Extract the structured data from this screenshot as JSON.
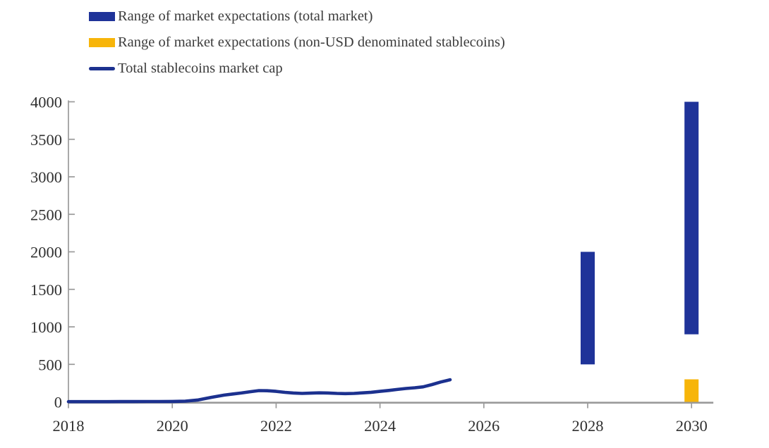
{
  "legend": {
    "items": [
      {
        "label": "Range of market expectations (total market)",
        "swatch": "rect",
        "color": "#1F3399"
      },
      {
        "label": "Range of market expectations (non-USD denominated stablecoins)",
        "swatch": "rect",
        "color": "#F7B50A"
      },
      {
        "label": "Total stablecoins market cap",
        "swatch": "line",
        "color": "#1C318F"
      }
    ]
  },
  "chart_data": {
    "type": "combo",
    "title": "",
    "xlabel": "",
    "ylabel": "",
    "grid": false,
    "legend_position": "top-left",
    "axis_color": "#9A9A9A",
    "label_color": "#303030",
    "x_axis": {
      "ticks": [
        2018,
        2020,
        2022,
        2024,
        2026,
        2028,
        2030
      ],
      "range": [
        2018,
        2030.42
      ]
    },
    "y_axis": {
      "ticks": [
        0,
        500,
        1000,
        1500,
        2000,
        2500,
        3000,
        3500,
        4000
      ],
      "range": [
        0,
        4000
      ]
    },
    "series": [
      {
        "name": "Range of market expectations (total market)",
        "type": "range-bar",
        "color": "#1F3399",
        "points": [
          {
            "x": 2028,
            "low": 500,
            "high": 2000
          },
          {
            "x": 2030,
            "low": 900,
            "high": 4000
          }
        ]
      },
      {
        "name": "Range of market expectations (non-USD denominated stablecoins)",
        "type": "range-bar",
        "color": "#F7B50A",
        "points": [
          {
            "x": 2030,
            "low": 0,
            "high": 300
          }
        ]
      },
      {
        "name": "Total stablecoins market cap",
        "type": "line",
        "color": "#1C318F",
        "x": [
          2018.0,
          2018.25,
          2018.5,
          2018.75,
          2019.0,
          2019.25,
          2019.5,
          2019.75,
          2020.0,
          2020.25,
          2020.5,
          2020.75,
          2021.0,
          2021.17,
          2021.33,
          2021.5,
          2021.67,
          2021.83,
          2022.0,
          2022.17,
          2022.33,
          2022.5,
          2022.67,
          2022.83,
          2023.0,
          2023.17,
          2023.33,
          2023.5,
          2023.67,
          2023.83,
          2024.0,
          2024.17,
          2024.33,
          2024.5,
          2024.67,
          2024.83,
          2025.0,
          2025.17,
          2025.35
        ],
        "y": [
          3,
          3,
          3,
          3,
          4,
          4,
          5,
          5,
          6,
          9,
          25,
          60,
          90,
          105,
          118,
          135,
          150,
          148,
          140,
          127,
          118,
          113,
          116,
          120,
          118,
          113,
          110,
          113,
          120,
          128,
          140,
          152,
          165,
          178,
          188,
          200,
          230,
          265,
          295
        ]
      }
    ]
  }
}
